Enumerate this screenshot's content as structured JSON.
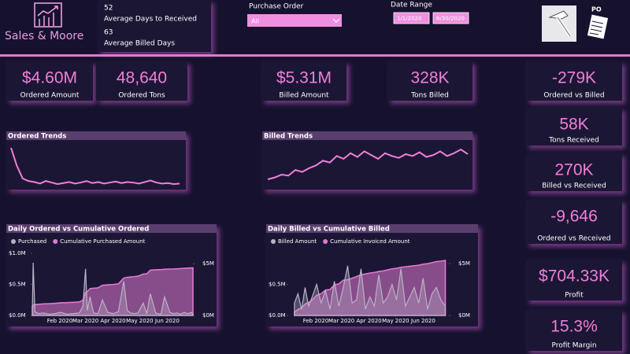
{
  "header": {
    "brand": "Sales & Moore",
    "stats": [
      {
        "value": 52,
        "label": "Average Days to Received"
      },
      {
        "value": 63,
        "label": "Average Billed Days"
      }
    ],
    "po_label": "PO"
  },
  "filters": {
    "purchase_order": {
      "label": "Purchase Order",
      "selected": "All"
    },
    "date_range": {
      "label": "Date Range",
      "start": "1/1/2020",
      "end": "6/30/2020"
    }
  },
  "kpis": [
    {
      "value": "$4.60M",
      "label": "Ordered Amount"
    },
    {
      "value": "48,640",
      "label": "Ordered Tons"
    },
    {
      "value": "$5.31M",
      "label": "Billed Amount"
    },
    {
      "value": "328K",
      "label": "Tons Billed"
    },
    {
      "value": "-279K",
      "label": "Ordered vs Billed"
    },
    {
      "value": "58K",
      "label": "Tons Received"
    },
    {
      "value": "270K",
      "label": "Billed vs Received"
    },
    {
      "value": "-9,646",
      "label": "Ordered vs Received"
    },
    {
      "value": "$704.33K",
      "label": "Profit"
    },
    {
      "value": "15.3%",
      "label": "Profit Margin"
    }
  ],
  "chart_data": [
    {
      "type": "sparkline",
      "title": "Ordered Trends",
      "color": "#f07fd8",
      "values": [
        95,
        60,
        35,
        30,
        28,
        25,
        30,
        27,
        24,
        26,
        28,
        25,
        27,
        30,
        26,
        28,
        25,
        27,
        29,
        26,
        28,
        27,
        25,
        28,
        31,
        27,
        25,
        26,
        24,
        25
      ]
    },
    {
      "type": "sparkline",
      "title": "Billed Trends",
      "color": "#f07fd8",
      "values": [
        30,
        32,
        35,
        34,
        40,
        38,
        42,
        45,
        50,
        48,
        55,
        52,
        58,
        54,
        60,
        56,
        52,
        58,
        55,
        53,
        57,
        55,
        59,
        54,
        56,
        60,
        55,
        58,
        62,
        57
      ]
    },
    {
      "type": "combo",
      "title": "Daily Ordered vs Cumulative Ordered",
      "legend": "top-left",
      "x": [
        1,
        2,
        4,
        8,
        14,
        20,
        27,
        33,
        40,
        47,
        54,
        58,
        61,
        63,
        66,
        70,
        75,
        80,
        86,
        92,
        98,
        104,
        108,
        112,
        116,
        120,
        126,
        130,
        134,
        140,
        146,
        150,
        156,
        160,
        164,
        168,
        172,
        176,
        180,
        182
      ],
      "xlim": [
        1,
        182
      ],
      "xticks": [
        {
          "value": 32,
          "label": "Feb 2020"
        },
        {
          "value": 61,
          "label": "Mar 2020"
        },
        {
          "value": 92,
          "label": "Apr 2020"
        },
        {
          "value": 122,
          "label": "May 2020"
        },
        {
          "value": 153,
          "label": "Jun 2020"
        }
      ],
      "ylim": [
        0,
        1000000
      ],
      "yticks": [
        {
          "value": 0,
          "label": "$0.0M"
        },
        {
          "value": 500000,
          "label": "$0.5M"
        },
        {
          "value": 1000000,
          "label": "$1.0M"
        }
      ],
      "y2lim": [
        0,
        6000000
      ],
      "y2ticks": [
        {
          "value": 0,
          "label": "$0M"
        },
        {
          "value": 5000000,
          "label": "$5M"
        }
      ],
      "series": [
        {
          "name": "Purchased",
          "color": "#b9b2c6",
          "values": [
            20000,
            850000,
            60000,
            30000,
            40000,
            20000,
            30000,
            50000,
            20000,
            30000,
            40000,
            150000,
            750000,
            80000,
            300000,
            40000,
            30000,
            250000,
            50000,
            30000,
            60000,
            550000,
            80000,
            40000,
            30000,
            40000,
            200000,
            30000,
            350000,
            40000,
            20000,
            300000,
            50000,
            30000,
            40000,
            20000,
            50000,
            30000,
            50000,
            20000
          ]
        },
        {
          "name": "Cumulative Purchased Amount",
          "color": "#e07ad0",
          "axis": "y2",
          "values": [
            900000,
            1000000,
            1050000,
            1080000,
            1120000,
            1140000,
            1170000,
            1220000,
            1240000,
            1270000,
            1310000,
            1460000,
            2210000,
            2290000,
            2590000,
            2630000,
            2660000,
            2910000,
            2960000,
            2990000,
            3050000,
            3600000,
            3680000,
            3720000,
            3750000,
            3790000,
            3990000,
            4020000,
            4370000,
            4410000,
            4430000,
            4460000,
            4480000,
            4490000,
            4510000,
            4520000,
            4550000,
            4570000,
            4590000,
            4600000
          ]
        }
      ]
    },
    {
      "type": "combo",
      "title": "Daily Billed vs Cumulative Billed",
      "legend": "top-left",
      "x": [
        8,
        12,
        16,
        20,
        24,
        28,
        33,
        38,
        43,
        48,
        53,
        58,
        63,
        68,
        73,
        78,
        83,
        88,
        93,
        98,
        103,
        108,
        113,
        118,
        123,
        128,
        133,
        138,
        143,
        148,
        153,
        158,
        163,
        168,
        173,
        178
      ],
      "xlim": [
        1,
        182
      ],
      "xticks": [
        {
          "value": 32,
          "label": "Feb 2020"
        },
        {
          "value": 61,
          "label": "Mar 2020"
        },
        {
          "value": 92,
          "label": "Apr 2020"
        },
        {
          "value": 122,
          "label": "May 2020"
        },
        {
          "value": 153,
          "label": "Jun 2020"
        }
      ],
      "ylim": [
        0,
        1000000
      ],
      "yticks": [
        {
          "value": 0,
          "label": "$0.0M"
        },
        {
          "value": 500000,
          "label": "$0.5M"
        }
      ],
      "y2lim": [
        0,
        6000000
      ],
      "y2ticks": [
        {
          "value": 0,
          "label": "$0M"
        },
        {
          "value": 5000000,
          "label": "$5M"
        }
      ],
      "series": [
        {
          "name": "Billed Amount",
          "color": "#b9b2c6",
          "values": [
            200000,
            350000,
            100000,
            450000,
            150000,
            300000,
            500000,
            200000,
            400000,
            100000,
            550000,
            150000,
            450000,
            800000,
            200000,
            250000,
            750000,
            100000,
            300000,
            150000,
            650000,
            200000,
            300000,
            500000,
            250000,
            750000,
            150000,
            300000,
            450000,
            200000,
            600000,
            100000,
            350000,
            450000,
            250000,
            150000
          ]
        },
        {
          "name": "Cumulative Invoiced Amount",
          "color": "#e07ad0",
          "axis": "y2",
          "values": [
            300000,
            600000,
            700000,
            1100000,
            1250000,
            1500000,
            1950000,
            2100000,
            2450000,
            2500000,
            2950000,
            3050000,
            3400000,
            3450000,
            3600000,
            3750000,
            3950000,
            4000000,
            4100000,
            4150000,
            4250000,
            4300000,
            4400000,
            4500000,
            4550000,
            4650000,
            4700000,
            4750000,
            4800000,
            4850000,
            4950000,
            5000000,
            5100000,
            5200000,
            5250000,
            5310000
          ]
        }
      ]
    }
  ]
}
